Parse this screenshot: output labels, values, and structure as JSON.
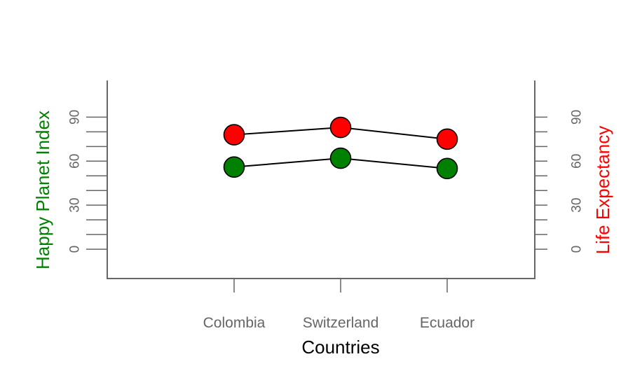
{
  "chart_data": {
    "type": "line",
    "categories": [
      "Colombia",
      "Switzerland",
      "Ecuador"
    ],
    "xlabel": "Countries",
    "ylabel_left": "Happy Planet Index",
    "ylabel_right": "Life Expectancy",
    "ylim": [
      -20,
      115
    ],
    "yticks": [
      0,
      30,
      60,
      90
    ],
    "series": [
      {
        "axis": "right",
        "color": "#ff0000",
        "values": [
          78,
          83,
          75
        ]
      },
      {
        "axis": "left",
        "color": "#008000",
        "values": [
          56,
          62,
          55
        ]
      }
    ],
    "colors": {
      "left_axis_label": "#008000",
      "right_axis_label": "#ff0000",
      "axis": "#666666",
      "tick_text": "#666666",
      "line": "#000000"
    }
  }
}
